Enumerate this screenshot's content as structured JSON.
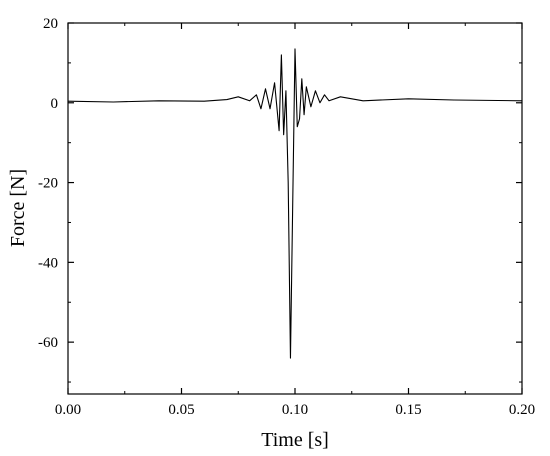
{
  "chart_data": {
    "type": "line",
    "xlabel": "Time [s]",
    "ylabel": "Force [N]",
    "xlim": [
      0.0,
      0.2
    ],
    "ylim": [
      -73,
      20
    ],
    "grid": false,
    "legend": "none",
    "line_color": "#000000",
    "x_ticks": [
      {
        "value": 0.0,
        "label": "0.00"
      },
      {
        "value": 0.05,
        "label": "0.05"
      },
      {
        "value": 0.1,
        "label": "0.10"
      },
      {
        "value": 0.15,
        "label": "0.15"
      },
      {
        "value": 0.2,
        "label": "0.20"
      }
    ],
    "y_ticks": [
      {
        "value": 20,
        "label": "20"
      },
      {
        "value": 0,
        "label": "0"
      },
      {
        "value": -20,
        "label": "-20"
      },
      {
        "value": -40,
        "label": "-40"
      },
      {
        "value": -60,
        "label": "-60"
      }
    ],
    "series": [
      {
        "x": [
          0.0,
          0.02,
          0.04,
          0.06,
          0.07,
          0.075,
          0.08,
          0.083,
          0.085,
          0.087,
          0.089,
          0.091,
          0.093,
          0.094,
          0.095,
          0.096,
          0.097,
          0.098,
          0.099,
          0.1,
          0.101,
          0.102,
          0.103,
          0.104,
          0.105,
          0.107,
          0.109,
          0.111,
          0.113,
          0.115,
          0.12,
          0.13,
          0.15,
          0.17,
          0.2
        ],
        "y": [
          0.4,
          0.2,
          0.5,
          0.4,
          0.8,
          1.5,
          0.5,
          2.0,
          -1.5,
          3.5,
          -1.5,
          5.0,
          -7.0,
          12.0,
          -8.0,
          3.0,
          -20.0,
          -64.0,
          -25.0,
          13.5,
          -6.0,
          -4.0,
          6.0,
          -3.0,
          4.0,
          -1.0,
          3.0,
          0.0,
          2.0,
          0.5,
          1.5,
          0.5,
          1.0,
          0.7,
          0.5
        ]
      }
    ]
  }
}
